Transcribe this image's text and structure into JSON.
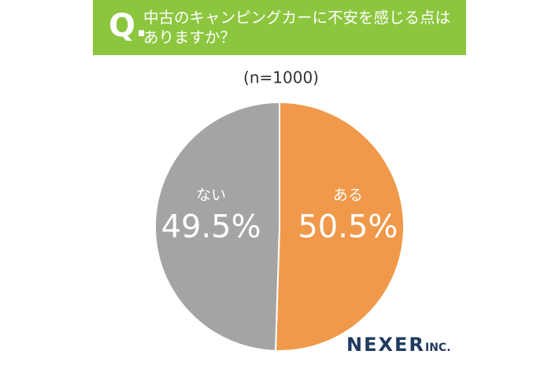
{
  "chart_data": {
    "type": "pie",
    "question_mark": "Q.",
    "title": "中古のキャンピングカーに不安を感じる点はありますか？",
    "subtitle": "(n=1000)",
    "categories": [
      "ある",
      "ない"
    ],
    "values": [
      50.5,
      49.5
    ],
    "value_labels": [
      "50.5%",
      "49.5%"
    ],
    "colors": [
      "#f0994a",
      "#a4a4a4"
    ],
    "brand": {
      "name": "NEXER",
      "suffix": "INC."
    }
  }
}
